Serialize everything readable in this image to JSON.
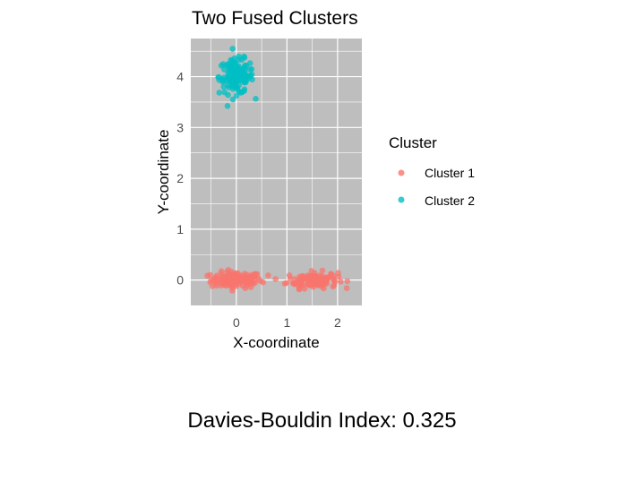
{
  "chart_data": {
    "type": "scatter",
    "title": "Two Fused Clusters",
    "xlabel": "X-coordinate",
    "ylabel": "Y-coordinate",
    "xlim": [
      -0.9,
      2.48
    ],
    "ylim": [
      -0.5,
      4.75
    ],
    "x_ticks": [
      0,
      1,
      2
    ],
    "y_ticks": [
      0,
      1,
      2,
      3,
      4
    ],
    "grid": true,
    "legend": {
      "title": "Cluster",
      "position": "right",
      "entries": [
        "Cluster 1",
        "Cluster 2"
      ]
    },
    "series": [
      {
        "name": "Cluster 1",
        "color": "#F8766D",
        "approx_count": 250,
        "sub_groups": [
          {
            "center": [
              0.0,
              0.0
            ],
            "sd": [
              0.25,
              0.08
            ]
          },
          {
            "center": [
              1.5,
              0.0
            ],
            "sd": [
              0.25,
              0.08
            ]
          }
        ],
        "x_range": [
          -0.72,
          2.4
        ],
        "y_range": [
          -0.3,
          0.25
        ]
      },
      {
        "name": "Cluster 2",
        "color": "#00BFC4",
        "approx_count": 150,
        "center": [
          0.0,
          4.0
        ],
        "sd": [
          0.17,
          0.17
        ],
        "x_range": [
          -0.67,
          0.72
        ],
        "y_range": [
          3.4,
          4.55
        ]
      }
    ]
  },
  "caption": "Davies-Bouldin Index: 0.325",
  "colors": {
    "panel_background": "#BEBEBE",
    "grid_line": "#FFFFFF",
    "text": "#000000",
    "tick_label": "#4D4D4D"
  }
}
